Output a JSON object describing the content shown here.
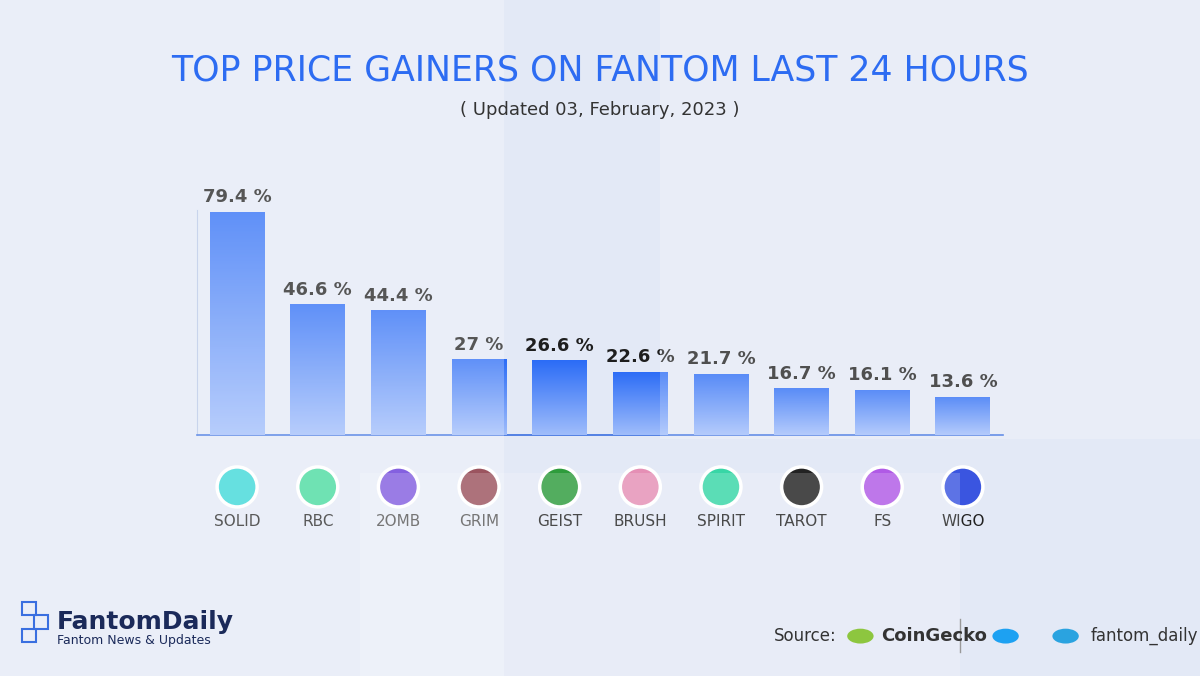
{
  "chart_data": {
    "type": "bar",
    "title": "TOP PRICE GAINERS ON FANTOM LAST 24 HOURS",
    "subtitle": "( Updated 03, February, 2023 )",
    "categories": [
      "SOLID",
      "RBC",
      "2OMB",
      "GRIM",
      "GEIST",
      "BRUSH",
      "SPIRIT",
      "TAROT",
      "FS",
      "WIGO"
    ],
    "values": [
      79.4,
      46.6,
      44.4,
      27,
      26.6,
      22.6,
      21.7,
      16.7,
      16.1,
      13.6
    ],
    "value_labels": [
      "79.4 %",
      "46.6 %",
      "44.4 %",
      "27 %",
      "26.6 %",
      "22.6 %",
      "21.7 %",
      "16.7 %",
      "16.1 %",
      "13.6 %"
    ],
    "color": "#2b6cf6",
    "ylim": [
      0,
      80
    ],
    "yticks": [],
    "grid": false,
    "data_labels": true,
    "tick_labels": "x",
    "annotations": [
      "FantomDaily",
      "Fantom News & Updates",
      "Source:",
      "CoinGecko",
      "fantom_daily"
    ]
  }
}
